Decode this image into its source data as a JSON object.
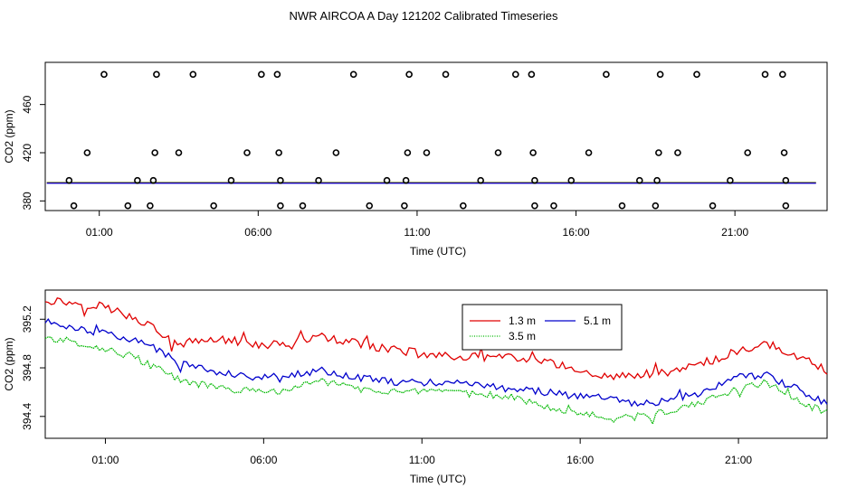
{
  "title": "NWR AIRCOA A  Day 121202  Calibrated Timeseries",
  "chart_data": [
    {
      "type": "scatter",
      "name": "top-panel",
      "xlabel": "Time (UTC)",
      "ylabel": "CO2 (ppm)",
      "xlim": [
        -0.7,
        23.9
      ],
      "ylim": [
        372,
        495
      ],
      "x_ticks": [
        1,
        6,
        11,
        16,
        21
      ],
      "x_tick_labels": [
        "01:00",
        "06:00",
        "11:00",
        "16:00",
        "21:00"
      ],
      "y_ticks": [
        380,
        420,
        460
      ],
      "calibration_points": [
        {
          "x": 0.05,
          "y": 397
        },
        {
          "x": 0.62,
          "y": 420
        },
        {
          "x": 1.15,
          "y": 485
        },
        {
          "x": 0.2,
          "y": 376
        },
        {
          "x": 1.9,
          "y": 376
        },
        {
          "x": 2.2,
          "y": 397
        },
        {
          "x": 2.7,
          "y": 397
        },
        {
          "x": 2.75,
          "y": 420
        },
        {
          "x": 2.8,
          "y": 485
        },
        {
          "x": 2.6,
          "y": 376
        },
        {
          "x": 3.5,
          "y": 420
        },
        {
          "x": 3.95,
          "y": 485
        },
        {
          "x": 4.6,
          "y": 376
        },
        {
          "x": 5.15,
          "y": 397
        },
        {
          "x": 5.65,
          "y": 420
        },
        {
          "x": 6.1,
          "y": 485
        },
        {
          "x": 6.6,
          "y": 485
        },
        {
          "x": 6.65,
          "y": 420
        },
        {
          "x": 6.7,
          "y": 397
        },
        {
          "x": 6.7,
          "y": 376
        },
        {
          "x": 7.4,
          "y": 376
        },
        {
          "x": 7.9,
          "y": 397
        },
        {
          "x": 8.45,
          "y": 420
        },
        {
          "x": 9.0,
          "y": 485
        },
        {
          "x": 9.5,
          "y": 376
        },
        {
          "x": 10.05,
          "y": 397
        },
        {
          "x": 10.6,
          "y": 376
        },
        {
          "x": 10.65,
          "y": 397
        },
        {
          "x": 10.7,
          "y": 420
        },
        {
          "x": 10.75,
          "y": 485
        },
        {
          "x": 11.3,
          "y": 420
        },
        {
          "x": 11.9,
          "y": 485
        },
        {
          "x": 12.45,
          "y": 376
        },
        {
          "x": 13.0,
          "y": 397
        },
        {
          "x": 13.55,
          "y": 420
        },
        {
          "x": 14.1,
          "y": 485
        },
        {
          "x": 14.6,
          "y": 485
        },
        {
          "x": 14.65,
          "y": 420
        },
        {
          "x": 14.7,
          "y": 397
        },
        {
          "x": 14.7,
          "y": 376
        },
        {
          "x": 15.3,
          "y": 376
        },
        {
          "x": 15.85,
          "y": 397
        },
        {
          "x": 16.4,
          "y": 420
        },
        {
          "x": 16.95,
          "y": 485
        },
        {
          "x": 17.45,
          "y": 376
        },
        {
          "x": 18.0,
          "y": 397
        },
        {
          "x": 18.5,
          "y": 376
        },
        {
          "x": 18.55,
          "y": 397
        },
        {
          "x": 18.6,
          "y": 420
        },
        {
          "x": 18.65,
          "y": 485
        },
        {
          "x": 19.2,
          "y": 420
        },
        {
          "x": 19.8,
          "y": 485
        },
        {
          "x": 20.3,
          "y": 376
        },
        {
          "x": 20.85,
          "y": 397
        },
        {
          "x": 21.4,
          "y": 420
        },
        {
          "x": 21.95,
          "y": 485
        },
        {
          "x": 22.5,
          "y": 485
        },
        {
          "x": 22.55,
          "y": 420
        },
        {
          "x": 22.6,
          "y": 397
        },
        {
          "x": 22.6,
          "y": 376
        }
      ],
      "series_level_ppm": 395
    },
    {
      "type": "line",
      "name": "bottom-panel",
      "xlabel": "Time (UTC)",
      "ylabel": "CO2 (ppm)",
      "xlim": [
        -0.9,
        23.8
      ],
      "ylim": [
        394.22,
        395.44
      ],
      "x_ticks": [
        1,
        6,
        11,
        16,
        21
      ],
      "x_tick_labels": [
        "01:00",
        "06:00",
        "11:00",
        "16:00",
        "21:00"
      ],
      "y_ticks": [
        394.4,
        394.8,
        395.2
      ],
      "y_tick_labels": [
        "394.4",
        "394.8",
        "395.2"
      ],
      "legend_position": "top-center",
      "series": [
        {
          "name": "1.3 m",
          "color": "#e00000",
          "anchors_x": [
            -0.9,
            0.9,
            1.9,
            2.6,
            3.2,
            4.5,
            5.9,
            6.9,
            7.8,
            8.9,
            10.9,
            12.4,
            13.9,
            15.0,
            15.9,
            16.8,
            17.7,
            18.9,
            19.9,
            20.9,
            21.9,
            22.9,
            23.8
          ],
          "anchors_y": [
            395.36,
            395.31,
            395.22,
            395.12,
            394.99,
            395.04,
            394.99,
            395.0,
            395.06,
            395.0,
            394.92,
            394.89,
            394.88,
            394.84,
            394.79,
            394.73,
            394.74,
            394.76,
            394.84,
            394.93,
            395.0,
            394.89,
            394.78
          ],
          "noise": 0.035
        },
        {
          "name": "5.1 m",
          "color": "#0000cc",
          "anchors_x": [
            -0.9,
            0.3,
            1.8,
            2.7,
            3.3,
            4.7,
            5.9,
            6.9,
            7.8,
            8.9,
            10.4,
            12.4,
            13.9,
            15.0,
            15.9,
            16.9,
            17.9,
            18.9,
            19.9,
            20.9,
            21.9,
            22.9,
            23.8
          ],
          "anchors_y": [
            395.18,
            395.12,
            395.03,
            394.95,
            394.84,
            394.76,
            394.72,
            394.74,
            394.78,
            394.72,
            394.68,
            394.68,
            394.62,
            394.6,
            394.56,
            394.56,
            394.5,
            394.54,
            394.6,
            394.72,
            394.74,
            394.62,
            394.5
          ],
          "noise": 0.03
        },
        {
          "name": "3.5 m",
          "color": "#00b800",
          "anchors_x": [
            -0.9,
            0.3,
            1.8,
            2.6,
            3.3,
            4.7,
            5.9,
            6.9,
            7.8,
            8.9,
            10.4,
            12.4,
            13.9,
            15.0,
            15.9,
            16.9,
            17.9,
            18.9,
            19.9,
            20.9,
            21.9,
            22.9,
            23.8
          ],
          "anchors_y": [
            395.05,
            395.0,
            394.9,
            394.8,
            394.7,
            394.63,
            394.6,
            394.62,
            394.7,
            394.63,
            394.6,
            394.59,
            394.56,
            394.48,
            394.43,
            394.38,
            394.4,
            394.45,
            394.52,
            394.62,
            394.68,
            394.52,
            394.43
          ],
          "noise": 0.03
        }
      ]
    }
  ]
}
